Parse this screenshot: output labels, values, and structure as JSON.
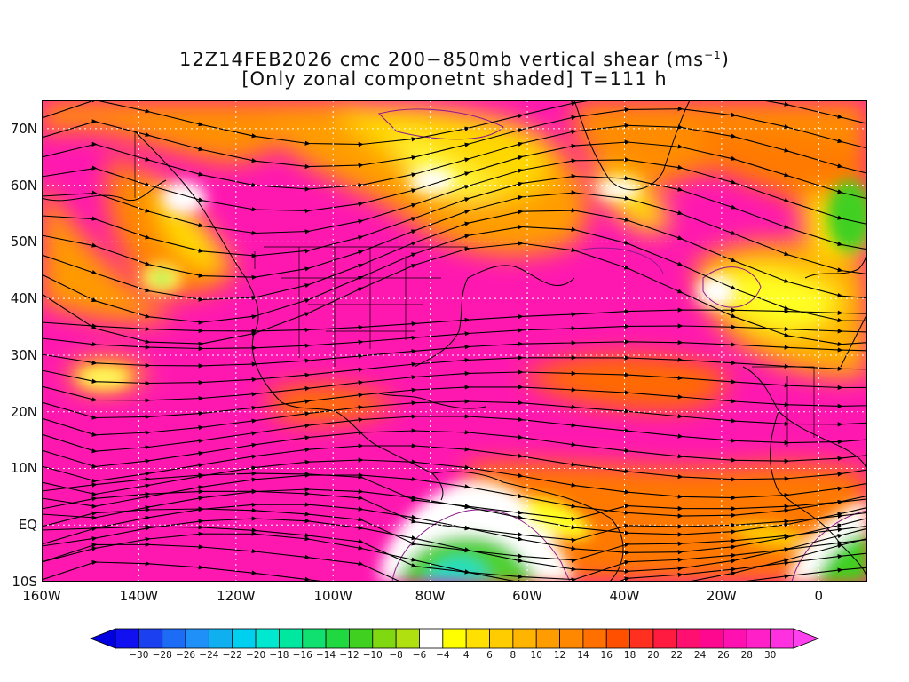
{
  "title": {
    "line1_prefix": "12Z14FEB2026 cmc 200−850mb vertical shear (ms",
    "line1_sup": "−1",
    "line1_suffix": ")",
    "line2": "[Only zonal componetnt shaded] T=111 h"
  },
  "map": {
    "lon_range": [
      -160,
      10
    ],
    "lat_range": [
      -10,
      75
    ],
    "lat_labels": [
      "70N",
      "60N",
      "50N",
      "40N",
      "30N",
      "20N",
      "10N",
      "EQ",
      "10S"
    ],
    "lat_values": [
      70,
      60,
      50,
      40,
      30,
      20,
      10,
      0,
      -10
    ],
    "lon_labels": [
      "160W",
      "140W",
      "120W",
      "100W",
      "80W",
      "60W",
      "40W",
      "20W",
      "0"
    ],
    "lon_values": [
      -160,
      -140,
      -120,
      -100,
      -80,
      -60,
      -40,
      -20,
      0
    ],
    "gridlines": "dotted"
  },
  "colorbar": {
    "labels": [
      "−30",
      "−28",
      "−26",
      "−24",
      "−22",
      "−20",
      "−18",
      "−16",
      "−14",
      "−12",
      "−10",
      "−8",
      "−6",
      "−4",
      "4",
      "6",
      "8",
      "10",
      "12",
      "14",
      "16",
      "18",
      "20",
      "22",
      "24",
      "26",
      "28",
      "30"
    ],
    "colors": [
      "#1010f0",
      "#1a40f0",
      "#1c6cf6",
      "#1e90f8",
      "#10b0f0",
      "#00d0f0",
      "#00e8d0",
      "#00e8a0",
      "#10e070",
      "#20d840",
      "#40d020",
      "#80d810",
      "#b0e010",
      "#ffffff",
      "#ffff00",
      "#ffe000",
      "#ffcc00",
      "#ffb400",
      "#ff9c00",
      "#ff8800",
      "#ff7000",
      "#ff5000",
      "#ff3020",
      "#ff1a40",
      "#ff1070",
      "#ff0890",
      "#ff10b0",
      "#ff20c8",
      "#ff30e0"
    ],
    "low_color": "#0000e0",
    "high_color": "#ff40ee"
  }
}
